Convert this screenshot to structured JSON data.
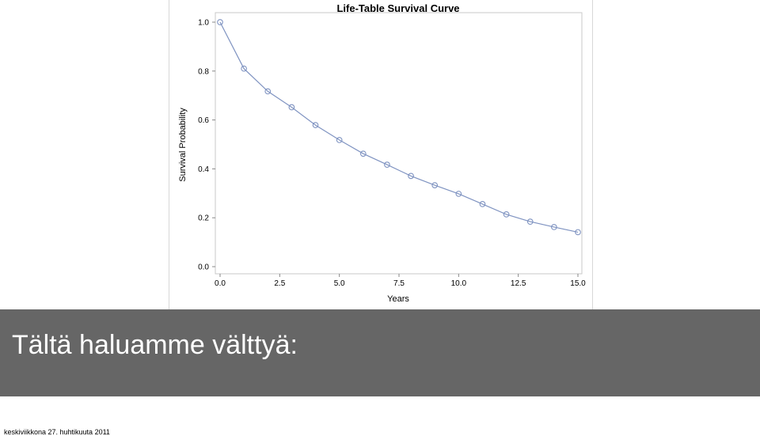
{
  "chart_data": {
    "type": "line",
    "title": "Life-Table Survival Curve",
    "xlabel": "Years",
    "ylabel": "Survival Probability",
    "x": [
      0,
      1,
      2,
      3,
      4,
      5,
      6,
      7,
      8,
      9,
      10,
      11,
      12,
      13,
      14,
      15
    ],
    "series": [
      {
        "values": [
          1.0,
          0.81,
          0.717,
          0.652,
          0.579,
          0.518,
          0.462,
          0.417,
          0.371,
          0.333,
          0.298,
          0.256,
          0.214,
          0.184,
          0.162,
          0.141
        ]
      }
    ],
    "xlim": [
      0,
      15
    ],
    "ylim": [
      0,
      1
    ],
    "xticks": [
      "0.0",
      "2.5",
      "5.0",
      "7.5",
      "10.0",
      "12.5",
      "15.0"
    ],
    "xtick_values": [
      0,
      2.5,
      5,
      7.5,
      10,
      12.5,
      15
    ],
    "yticks": [
      "0.0",
      "0.2",
      "0.4",
      "0.6",
      "0.8",
      "1.0"
    ],
    "ytick_values": [
      0,
      0.2,
      0.4,
      0.6,
      0.8,
      1.0
    ],
    "grid": false,
    "line_color": "#7f93c1",
    "marker": "open-circle"
  },
  "slide": {
    "heading": "Tältä haluamme välttyä:",
    "date": "keskiviikkona 27. huhtikuuta 2011",
    "banner_color": "#666666"
  }
}
